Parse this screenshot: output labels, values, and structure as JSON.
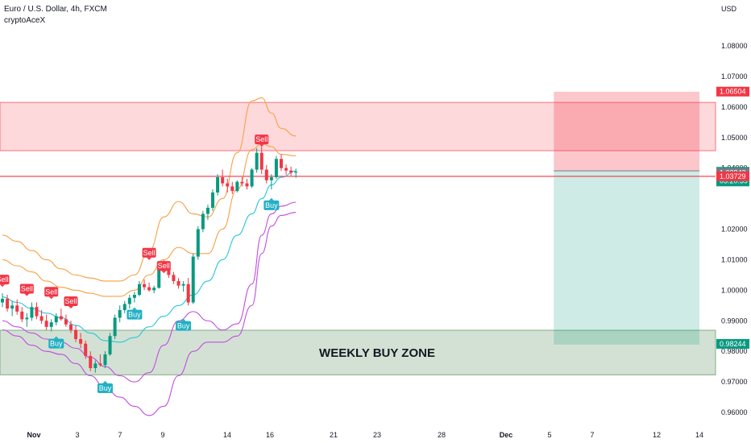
{
  "header": {
    "title": "Euro / U.S. Dollar, 4h, FXCM",
    "indicator": "cryptoAceX"
  },
  "chart_data": {
    "type": "candlestick",
    "symbol": "EUR/USD",
    "currency_label": "USD",
    "x_tick_labels": [
      "Nov",
      "3",
      "7",
      "9",
      "14",
      "16",
      "21",
      "23",
      "28",
      "Dec",
      "5",
      "7",
      "12",
      "14"
    ],
    "y_ticks": [
      0.96,
      0.97,
      0.98,
      0.99,
      1.0,
      1.01,
      1.02,
      1.04,
      1.05,
      1.06,
      1.07,
      1.08
    ],
    "y_tick_labels": [
      "0.96000",
      "0.97000",
      "0.98000",
      "0.99000",
      "1.00000",
      "1.01000",
      "1.02000",
      "1.04000",
      "1.05000",
      "1.06000",
      "1.07000",
      "1.08000"
    ],
    "ylim": [
      0.9555,
      1.0945
    ],
    "price_tags": [
      {
        "label": "1.06504",
        "value": 1.06504,
        "color": "#f23645"
      },
      {
        "label": "1.03878",
        "sublabel": "03:20:39",
        "value": 1.03878,
        "color": "#089981"
      },
      {
        "label": "1.03843",
        "value": 1.03843,
        "color": "#787b86"
      },
      {
        "label": "1.03729",
        "value": 1.03729,
        "color": "#f23645"
      },
      {
        "label": "0.98244",
        "value": 0.98244,
        "color": "#089981"
      }
    ],
    "zones": [
      {
        "name": "supply",
        "y_top": 1.0615,
        "y_bottom": 1.0457,
        "color": "#f7525f"
      },
      {
        "name": "WEEKLY BUY ZONE",
        "y_top": 0.9869,
        "y_bottom": 0.9723,
        "color": "#6a9c6c"
      }
    ],
    "horizontal_lines": [
      {
        "value": 1.03729,
        "color": "#f23645"
      }
    ],
    "position": {
      "entry": 1.0391,
      "stop": 1.065,
      "target": 0.9822,
      "x_start": 10.1,
      "x_end": 15.0
    },
    "zone_label": "WEEKLY BUY ZONE",
    "candles": [
      [
        0.996,
        0.999,
        0.9945,
        0.9972
      ],
      [
        0.9972,
        0.9985,
        0.993,
        0.994
      ],
      [
        0.994,
        0.9965,
        0.9915,
        0.995
      ],
      [
        0.995,
        0.997,
        0.992,
        0.993
      ],
      [
        0.993,
        0.9945,
        0.9895,
        0.9905
      ],
      [
        0.9905,
        0.9925,
        0.988,
        0.991
      ],
      [
        0.991,
        0.996,
        0.99,
        0.9945
      ],
      [
        0.9945,
        0.996,
        0.9905,
        0.9915
      ],
      [
        0.9915,
        0.9935,
        0.989,
        0.99
      ],
      [
        0.99,
        0.992,
        0.987,
        0.988
      ],
      [
        0.988,
        0.9905,
        0.9865,
        0.9895
      ],
      [
        0.9895,
        0.9925,
        0.9885,
        0.9915
      ],
      [
        0.9915,
        0.994,
        0.99,
        0.9905
      ],
      [
        0.9905,
        0.992,
        0.988,
        0.9888
      ],
      [
        0.9888,
        0.99,
        0.986,
        0.987
      ],
      [
        0.987,
        0.9885,
        0.983,
        0.984
      ],
      [
        0.984,
        0.986,
        0.981,
        0.9825
      ],
      [
        0.9825,
        0.9835,
        0.9775,
        0.9785
      ],
      [
        0.9785,
        0.98,
        0.9735,
        0.9745
      ],
      [
        0.9745,
        0.977,
        0.973,
        0.976
      ],
      [
        0.976,
        0.979,
        0.975,
        0.9755
      ],
      [
        0.9755,
        0.98,
        0.9745,
        0.979
      ],
      [
        0.979,
        0.986,
        0.9785,
        0.985
      ],
      [
        0.985,
        0.992,
        0.984,
        0.991
      ],
      [
        0.991,
        0.995,
        0.9895,
        0.9935
      ],
      [
        0.9935,
        0.9965,
        0.9925,
        0.9955
      ],
      [
        0.9955,
        0.9985,
        0.994,
        0.9975
      ],
      [
        0.9975,
        0.9995,
        0.996,
        0.9985
      ],
      [
        0.9985,
        1.003,
        0.998,
        1.002
      ],
      [
        1.002,
        1.0035,
        1.0,
        1.001
      ],
      [
        1.001,
        1.0025,
        0.9995,
        1.0
      ],
      [
        1.0,
        1.0015,
        0.999,
        1.0008
      ],
      [
        1.0008,
        1.0095,
        1.0005,
        1.009
      ],
      [
        1.009,
        1.01,
        1.007,
        1.008
      ],
      [
        1.008,
        1.009,
        1.004,
        1.005
      ],
      [
        1.005,
        1.006,
        1.002,
        1.003
      ],
      [
        1.003,
        1.004,
        1.0005,
        1.0015
      ],
      [
        1.0015,
        1.003,
        0.9995,
        1.002
      ],
      [
        1.002,
        1.004,
        0.995,
        0.996
      ],
      [
        0.996,
        1.012,
        0.9955,
        1.011
      ],
      [
        1.011,
        1.021,
        1.01,
        1.02
      ],
      [
        1.02,
        1.026,
        1.019,
        1.025
      ],
      [
        1.025,
        1.028,
        1.023,
        1.027
      ],
      [
        1.027,
        1.033,
        1.026,
        1.032
      ],
      [
        1.032,
        1.038,
        1.031,
        1.037
      ],
      [
        1.037,
        1.0395,
        1.034,
        1.035
      ],
      [
        1.035,
        1.0365,
        1.032,
        1.034
      ],
      [
        1.034,
        1.0355,
        1.0315,
        1.0325
      ],
      [
        1.0325,
        1.036,
        1.032,
        1.0355
      ],
      [
        1.0355,
        1.037,
        1.034,
        1.035
      ],
      [
        1.035,
        1.0365,
        1.033,
        1.034
      ],
      [
        1.034,
        1.04,
        1.0335,
        1.0395
      ],
      [
        1.0395,
        1.0465,
        1.0385,
        1.045
      ],
      [
        1.045,
        1.047,
        1.038,
        1.0395
      ],
      [
        1.0395,
        1.041,
        1.035,
        1.036
      ],
      [
        1.036,
        1.038,
        1.033,
        1.037
      ],
      [
        1.037,
        1.044,
        1.0365,
        1.043
      ],
      [
        1.043,
        1.0445,
        1.039,
        1.04
      ],
      [
        1.04,
        1.0412,
        1.0378,
        1.0392
      ],
      [
        1.0392,
        1.0405,
        1.0375,
        1.0385
      ],
      [
        1.0385,
        1.0398,
        1.0368,
        1.0388
      ]
    ],
    "signals": [
      {
        "label": "Sell",
        "type": "sell",
        "bar": 0,
        "price": 1.0019
      },
      {
        "label": "Sell",
        "type": "sell",
        "bar": 5,
        "price": 0.9989
      },
      {
        "label": "Sell",
        "type": "sell",
        "bar": 10,
        "price": 0.9979
      },
      {
        "label": "Buy",
        "type": "buy",
        "bar": 11,
        "price": 0.9841
      },
      {
        "label": "Sell",
        "type": "sell",
        "bar": 14,
        "price": 0.9948
      },
      {
        "label": "Buy",
        "type": "buy",
        "bar": 21,
        "price": 0.9695
      },
      {
        "label": "Buy",
        "type": "buy",
        "bar": 27,
        "price": 0.9936
      },
      {
        "label": "Sell",
        "type": "sell",
        "bar": 30,
        "price": 1.0107
      },
      {
        "label": "Sell",
        "type": "sell",
        "bar": 33,
        "price": 1.0064
      },
      {
        "label": "Buy",
        "type": "buy",
        "bar": 37,
        "price": 0.9899
      },
      {
        "label": "Sell",
        "type": "sell",
        "bar": 53,
        "price": 1.0478
      },
      {
        "label": "Buy",
        "type": "buy",
        "bar": 55,
        "price": 1.0294
      }
    ],
    "bands": [
      {
        "name": "upper-outer",
        "color": "#f7a145",
        "x": [
          0,
          3,
          6,
          9,
          12,
          15,
          18,
          21,
          24,
          27,
          30,
          33,
          36,
          39,
          42,
          45,
          48,
          51,
          53,
          55,
          57,
          60
        ],
        "values": [
          1.018,
          1.016,
          1.013,
          1.01,
          1.007,
          1.005,
          1.004,
          1.003,
          1.003,
          1.005,
          1.013,
          1.024,
          1.029,
          1.025,
          1.024,
          1.03,
          1.045,
          1.062,
          1.063,
          1.058,
          1.053,
          1.0505
        ]
      },
      {
        "name": "upper-inner",
        "color": "#f7a145",
        "x": [
          0,
          3,
          6,
          9,
          12,
          15,
          18,
          21,
          24,
          27,
          30,
          33,
          36,
          39,
          42,
          45,
          48,
          51,
          53,
          55,
          57,
          60
        ],
        "values": [
          1.01,
          1.008,
          1.006,
          1.003,
          1.001,
          1.0,
          0.999,
          0.998,
          0.998,
          1.0,
          1.005,
          1.01,
          1.014,
          1.012,
          1.012,
          1.02,
          1.033,
          1.046,
          1.048,
          1.047,
          1.0445,
          1.044
        ]
      },
      {
        "name": "middle",
        "color": "#26c6da",
        "x": [
          0,
          3,
          6,
          9,
          12,
          15,
          18,
          21,
          24,
          27,
          30,
          33,
          36,
          39,
          42,
          45,
          48,
          51,
          53,
          55,
          57,
          60
        ],
        "values": [
          0.9978,
          0.996,
          0.994,
          0.9925,
          0.991,
          0.9885,
          0.986,
          0.9835,
          0.983,
          0.9845,
          0.988,
          0.9915,
          0.995,
          0.9985,
          1.003,
          1.01,
          1.018,
          1.025,
          1.03,
          1.0345,
          1.037,
          1.039
        ]
      },
      {
        "name": "lower-inner",
        "color": "#c14ee0",
        "x": [
          0,
          3,
          6,
          9,
          12,
          15,
          18,
          21,
          24,
          27,
          30,
          33,
          36,
          39,
          42,
          45,
          48,
          51,
          53,
          55,
          57,
          60
        ],
        "values": [
          0.99,
          0.988,
          0.986,
          0.984,
          0.983,
          0.981,
          0.978,
          0.975,
          0.972,
          0.97,
          0.973,
          0.982,
          0.99,
          0.993,
          0.99,
          0.987,
          0.989,
          1.002,
          1.018,
          1.025,
          1.0275,
          1.0288
        ]
      },
      {
        "name": "lower-outer",
        "color": "#c14ee0",
        "x": [
          0,
          3,
          6,
          9,
          12,
          15,
          18,
          21,
          24,
          27,
          30,
          33,
          36,
          39,
          42,
          45,
          48,
          51,
          53,
          55,
          57,
          60
        ],
        "values": [
          0.987,
          0.985,
          0.982,
          0.98,
          0.979,
          0.976,
          0.972,
          0.968,
          0.965,
          0.962,
          0.959,
          0.962,
          0.972,
          0.98,
          0.983,
          0.983,
          0.985,
          0.995,
          1.012,
          1.021,
          1.0245,
          1.0255
        ]
      }
    ],
    "colors": {
      "up": "#089981",
      "down": "#f23645",
      "sell_badge": "#f23645",
      "buy_badge": "#22b0c4",
      "entry_line": "#787b86"
    }
  }
}
